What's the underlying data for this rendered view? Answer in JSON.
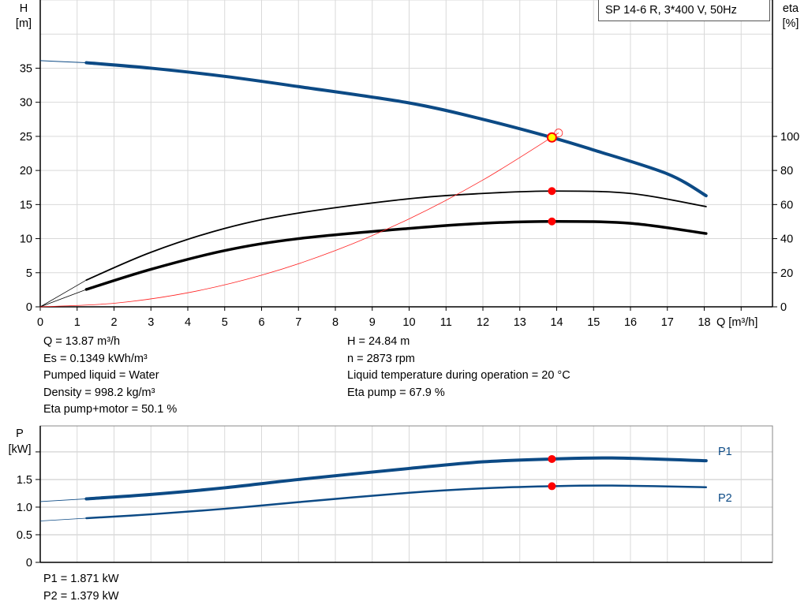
{
  "model_label": "SP 14-6 R, 3*400 V, 50Hz",
  "colors": {
    "head": "#0c4a85",
    "eta": "#000000",
    "system": "#ff2020",
    "point": "#ff0000",
    "duty_fill": "#ffff00",
    "power": "#0c4a85",
    "grid": "#d9d9d9"
  },
  "chart_data": [
    {
      "type": "line",
      "xlabel": "Q [m³/h]",
      "ylabel_left": [
        "H",
        "[m]"
      ],
      "ylabel_right": [
        "eta",
        "[%]"
      ],
      "xlim": [
        0,
        19.85
      ],
      "ylim_left": [
        0,
        45
      ],
      "ylim_right": [
        0,
        180
      ],
      "x_ticks": [
        0,
        1,
        2,
        3,
        4,
        5,
        6,
        7,
        8,
        9,
        10,
        11,
        12,
        13,
        14,
        15,
        16,
        17,
        18
      ],
      "y_ticks_left": [
        0,
        5,
        10,
        15,
        20,
        25,
        30,
        35
      ],
      "y_ticks_right": [
        0,
        20,
        40,
        60,
        80,
        100
      ],
      "grid": true,
      "series": [
        {
          "key": "H",
          "axis": "left",
          "x": [
            0,
            1.25,
            3,
            5,
            7,
            10,
            12,
            13.87,
            15,
            17,
            18.05
          ],
          "y": [
            36.1,
            35.8,
            35.0,
            33.8,
            32.3,
            29.9,
            27.5,
            24.84,
            23.0,
            19.5,
            16.3
          ],
          "operating_from": 1.25
        },
        {
          "key": "eta_pump",
          "axis": "right",
          "x": [
            0,
            1.25,
            3,
            5,
            7,
            10,
            12,
            13.87,
            16,
            18.05
          ],
          "y": [
            0,
            15.7,
            32,
            46,
            55,
            63.4,
            66.5,
            67.9,
            66.5,
            58.8
          ],
          "operating_from": 1.25
        },
        {
          "key": "eta_pump_motor",
          "axis": "right",
          "x": [
            0,
            1.25,
            3,
            5,
            7,
            10,
            12,
            13.87,
            16,
            18.05
          ],
          "y": [
            0,
            10.2,
            22,
            33,
            40,
            46,
            49,
            50.1,
            49,
            43
          ],
          "operating_from": 1.25
        },
        {
          "key": "system_curve",
          "axis": "left",
          "x": [
            0,
            2,
            4,
            6,
            8,
            10,
            12,
            14.05
          ],
          "y": [
            0,
            0.52,
            2.06,
            4.64,
            8.25,
            12.9,
            18.6,
            25.5
          ]
        }
      ],
      "points": [
        {
          "key": "duty_point",
          "x": 13.87,
          "y": 24.84,
          "axis": "left"
        },
        {
          "key": "system_end",
          "x": 14.05,
          "y": 25.5,
          "axis": "left"
        },
        {
          "key": "eta_pump_point",
          "x": 13.87,
          "y": 67.9,
          "axis": "right"
        },
        {
          "key": "eta_pump_motor_point",
          "x": 13.87,
          "y": 50.1,
          "axis": "right"
        }
      ]
    },
    {
      "type": "line",
      "ylabel": [
        "P",
        "[kW]"
      ],
      "xlim": [
        0,
        19.85
      ],
      "ylim": [
        0,
        2.47
      ],
      "y_ticks": [
        0,
        0.5,
        1.0,
        1.5
      ],
      "y_tick_labels": [
        "0",
        "0.5",
        "1.0",
        "1.5"
      ],
      "grid": true,
      "series": [
        {
          "name": "P1",
          "x": [
            0,
            1.25,
            3,
            5,
            7,
            10,
            12,
            13.87,
            15.5,
            18.05
          ],
          "y": [
            1.1,
            1.15,
            1.23,
            1.35,
            1.5,
            1.7,
            1.82,
            1.871,
            1.89,
            1.84
          ],
          "operating_from": 1.25
        },
        {
          "name": "P2",
          "x": [
            0,
            1.25,
            3,
            5,
            7,
            10,
            12,
            13.87,
            15.5,
            18.05
          ],
          "y": [
            0.75,
            0.8,
            0.87,
            0.97,
            1.09,
            1.26,
            1.34,
            1.379,
            1.39,
            1.36
          ],
          "operating_from": 1.25
        }
      ],
      "points": [
        {
          "key": "P1_point",
          "x": 13.87,
          "y": 1.871
        },
        {
          "key": "P2_point",
          "x": 13.87,
          "y": 1.379
        }
      ]
    }
  ],
  "info_left": [
    "Q = 13.87 m³/h",
    "Es = 0.1349 kWh/m³",
    "Pumped liquid = Water",
    "Density = 998.2 kg/m³",
    "Eta pump+motor = 50.1 %"
  ],
  "info_right": [
    "H = 24.84 m",
    "n = 2873 rpm",
    "Liquid temperature during operation = 20 °C",
    "Eta pump = 67.9 %"
  ],
  "power_info": [
    "P1 = 1.871 kW",
    "P2 = 1.379 kW"
  ]
}
